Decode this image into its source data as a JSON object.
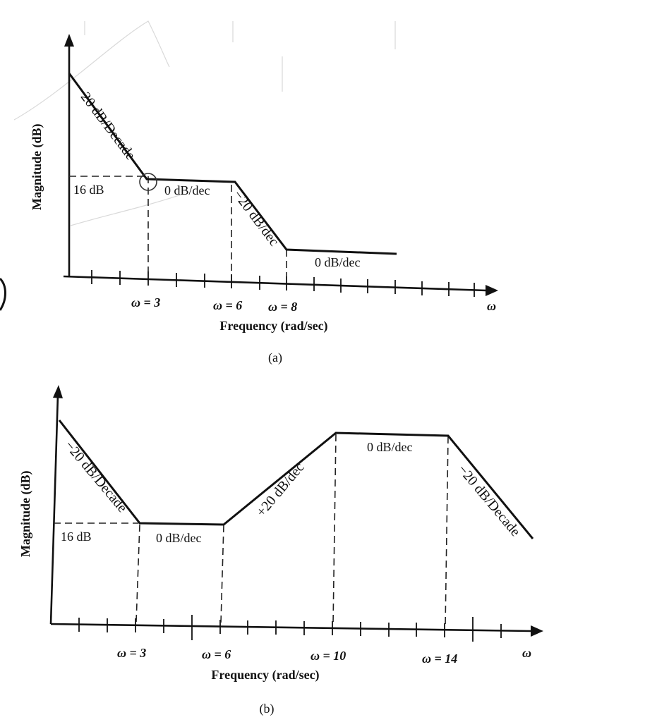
{
  "chart_data": [
    {
      "type": "line",
      "caption": "(a)",
      "xlabel": "Frequency (rad/sec)",
      "ylabel": "Magnitude (dB)",
      "x_axis_symbol": "ω",
      "markers": [
        {
          "w": 3,
          "label": "ω = 3"
        },
        {
          "w": 6,
          "label": "ω = 6"
        },
        {
          "w": 8,
          "label": "ω = 8"
        }
      ],
      "level_label": "16 dB",
      "segments": [
        {
          "label": "−20 dB/Decade"
        },
        {
          "label": "0 dB/dec"
        },
        {
          "label": "−20 dB/dec"
        },
        {
          "label": "0 dB/dec"
        }
      ]
    },
    {
      "type": "line",
      "caption": "(b)",
      "xlabel": "Frequency (rad/sec)",
      "ylabel": "Magnitude (dB)",
      "x_axis_symbol": "ω",
      "markers": [
        {
          "w": 3,
          "label": "ω = 3"
        },
        {
          "w": 6,
          "label": "ω = 6"
        },
        {
          "w": 10,
          "label": "ω = 10"
        },
        {
          "w": 14,
          "label": "ω = 14"
        }
      ],
      "level_label": "16 dB",
      "segments": [
        {
          "label": "−20 dB/Decade"
        },
        {
          "label": "0 dB/dec"
        },
        {
          "label": "+20 dB/dec"
        },
        {
          "label": "0 dB/dec"
        },
        {
          "label": "−20 dB/Decade"
        }
      ]
    }
  ],
  "colors": {
    "ink": "#111111",
    "background": "#ffffff"
  }
}
